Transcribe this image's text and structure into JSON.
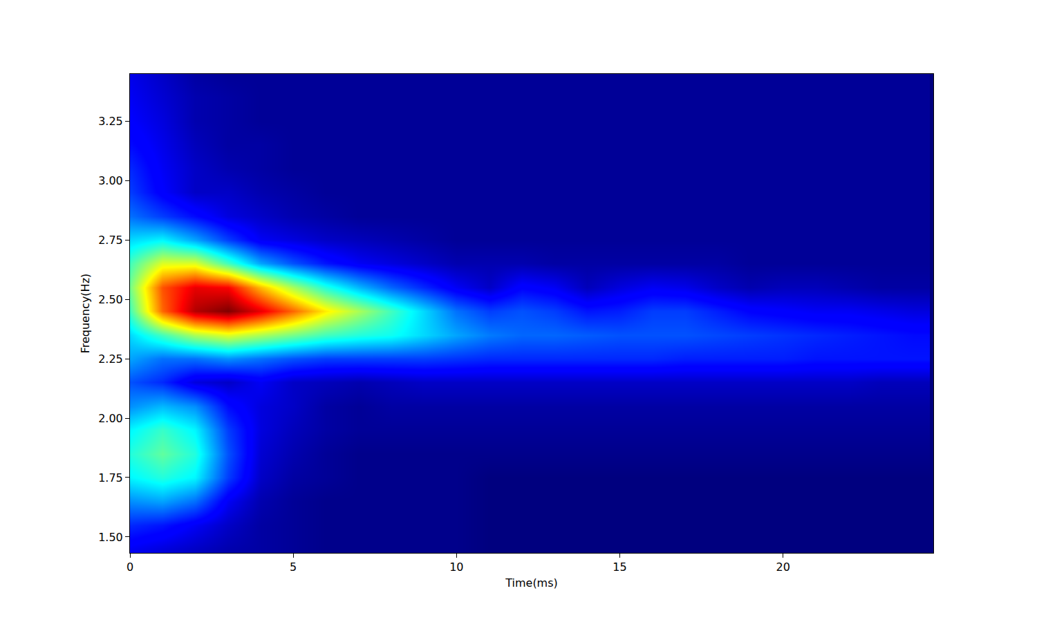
{
  "chart_data": {
    "type": "heatmap",
    "xlabel": "Time(ms)",
    "ylabel": "Frequency(Hz)",
    "xlim": [
      0,
      24.6
    ],
    "ylim": [
      1.433,
      3.448
    ],
    "xticks": [
      0,
      5,
      10,
      15,
      20
    ],
    "yticks": [
      {
        "value": 1.5,
        "label": "1.50"
      },
      1.75,
      {
        "value": 2,
        "label": "2.00"
      },
      2.25,
      {
        "value": 2.5,
        "label": "2.50"
      },
      2.75,
      {
        "value": 3,
        "label": "3.00"
      },
      3.25
    ],
    "x": [
      0,
      1,
      2,
      3,
      4,
      5,
      6,
      7,
      8,
      9,
      10,
      11,
      12,
      13,
      14,
      15,
      16,
      17,
      18,
      19,
      20,
      21,
      22,
      23,
      24
    ],
    "y": [
      1.45,
      1.55,
      1.65,
      1.75,
      1.85,
      1.95,
      2.05,
      2.15,
      2.25,
      2.35,
      2.45,
      2.55,
      2.65,
      2.75,
      2.85,
      2.95,
      3.05,
      3.15,
      3.25,
      3.35,
      3.45
    ],
    "z": [
      [
        0.12,
        0.1,
        0.08,
        0.06,
        0.05,
        0.04,
        0.03,
        0.03,
        0.03,
        0.03,
        0.03,
        0.02,
        0.02,
        0.02,
        0.02,
        0.02,
        0.02,
        0.02,
        0.02,
        0.02,
        0.02,
        0.02,
        0.02,
        0.02,
        0.02
      ],
      [
        0.18,
        0.16,
        0.12,
        0.08,
        0.05,
        0.04,
        0.03,
        0.03,
        0.03,
        0.03,
        0.03,
        0.02,
        0.02,
        0.02,
        0.02,
        0.02,
        0.02,
        0.02,
        0.02,
        0.02,
        0.02,
        0.02,
        0.02,
        0.02,
        0.02
      ],
      [
        0.28,
        0.3,
        0.25,
        0.12,
        0.06,
        0.04,
        0.03,
        0.03,
        0.03,
        0.03,
        0.03,
        0.02,
        0.02,
        0.02,
        0.02,
        0.02,
        0.02,
        0.02,
        0.02,
        0.02,
        0.02,
        0.02,
        0.02,
        0.02,
        0.02
      ],
      [
        0.38,
        0.42,
        0.38,
        0.2,
        0.08,
        0.05,
        0.04,
        0.03,
        0.03,
        0.03,
        0.03,
        0.02,
        0.02,
        0.02,
        0.02,
        0.02,
        0.02,
        0.02,
        0.02,
        0.02,
        0.02,
        0.02,
        0.02,
        0.02,
        0.02
      ],
      [
        0.42,
        0.48,
        0.42,
        0.22,
        0.09,
        0.06,
        0.04,
        0.03,
        0.03,
        0.03,
        0.03,
        0.03,
        0.03,
        0.03,
        0.03,
        0.03,
        0.03,
        0.03,
        0.03,
        0.03,
        0.03,
        0.03,
        0.03,
        0.03,
        0.03
      ],
      [
        0.38,
        0.44,
        0.38,
        0.2,
        0.1,
        0.07,
        0.05,
        0.04,
        0.04,
        0.04,
        0.04,
        0.04,
        0.04,
        0.04,
        0.04,
        0.04,
        0.04,
        0.04,
        0.04,
        0.04,
        0.04,
        0.04,
        0.04,
        0.04,
        0.04
      ],
      [
        0.28,
        0.32,
        0.28,
        0.15,
        0.1,
        0.08,
        0.05,
        0.04,
        0.05,
        0.05,
        0.05,
        0.05,
        0.05,
        0.05,
        0.05,
        0.05,
        0.05,
        0.05,
        0.05,
        0.05,
        0.05,
        0.05,
        0.05,
        0.05,
        0.05
      ],
      [
        0.22,
        0.18,
        0.1,
        0.08,
        0.12,
        0.08,
        0.07,
        0.06,
        0.07,
        0.08,
        0.08,
        0.08,
        0.08,
        0.08,
        0.08,
        0.08,
        0.08,
        0.08,
        0.08,
        0.08,
        0.08,
        0.08,
        0.08,
        0.07,
        0.07
      ],
      [
        0.3,
        0.25,
        0.25,
        0.28,
        0.25,
        0.22,
        0.2,
        0.2,
        0.2,
        0.2,
        0.19,
        0.18,
        0.18,
        0.18,
        0.18,
        0.18,
        0.18,
        0.17,
        0.17,
        0.17,
        0.17,
        0.16,
        0.16,
        0.16,
        0.16
      ],
      [
        0.35,
        0.45,
        0.55,
        0.6,
        0.55,
        0.5,
        0.45,
        0.42,
        0.4,
        0.35,
        0.3,
        0.26,
        0.24,
        0.24,
        0.23,
        0.22,
        0.22,
        0.22,
        0.21,
        0.2,
        0.19,
        0.18,
        0.17,
        0.16,
        0.15
      ],
      [
        0.45,
        0.78,
        0.95,
        1.0,
        0.9,
        0.78,
        0.65,
        0.55,
        0.45,
        0.35,
        0.25,
        0.2,
        0.22,
        0.2,
        0.16,
        0.17,
        0.2,
        0.2,
        0.17,
        0.14,
        0.13,
        0.12,
        0.12,
        0.11,
        0.1
      ],
      [
        0.5,
        0.8,
        0.9,
        0.88,
        0.7,
        0.55,
        0.42,
        0.32,
        0.24,
        0.18,
        0.12,
        0.08,
        0.14,
        0.12,
        0.07,
        0.1,
        0.12,
        0.11,
        0.08,
        0.06,
        0.07,
        0.07,
        0.06,
        0.05,
        0.05
      ],
      [
        0.45,
        0.6,
        0.6,
        0.45,
        0.3,
        0.22,
        0.16,
        0.12,
        0.1,
        0.08,
        0.06,
        0.06,
        0.06,
        0.05,
        0.05,
        0.05,
        0.05,
        0.05,
        0.05,
        0.04,
        0.04,
        0.04,
        0.04,
        0.04,
        0.04
      ],
      [
        0.35,
        0.38,
        0.3,
        0.2,
        0.12,
        0.1,
        0.08,
        0.07,
        0.06,
        0.05,
        0.04,
        0.04,
        0.04,
        0.04,
        0.04,
        0.04,
        0.04,
        0.04,
        0.04,
        0.04,
        0.04,
        0.04,
        0.04,
        0.04,
        0.04
      ],
      [
        0.25,
        0.2,
        0.15,
        0.1,
        0.08,
        0.06,
        0.05,
        0.04,
        0.04,
        0.04,
        0.04,
        0.04,
        0.04,
        0.04,
        0.04,
        0.04,
        0.04,
        0.04,
        0.04,
        0.04,
        0.04,
        0.04,
        0.04,
        0.04,
        0.04
      ],
      [
        0.2,
        0.13,
        0.08,
        0.08,
        0.06,
        0.05,
        0.04,
        0.04,
        0.04,
        0.04,
        0.04,
        0.04,
        0.04,
        0.04,
        0.04,
        0.04,
        0.04,
        0.04,
        0.04,
        0.04,
        0.04,
        0.04,
        0.04,
        0.04,
        0.04
      ],
      [
        0.18,
        0.12,
        0.08,
        0.06,
        0.05,
        0.04,
        0.04,
        0.04,
        0.04,
        0.04,
        0.04,
        0.04,
        0.04,
        0.04,
        0.04,
        0.04,
        0.04,
        0.04,
        0.04,
        0.04,
        0.04,
        0.04,
        0.04,
        0.04,
        0.04
      ],
      [
        0.15,
        0.11,
        0.07,
        0.05,
        0.05,
        0.04,
        0.04,
        0.04,
        0.04,
        0.04,
        0.04,
        0.04,
        0.04,
        0.04,
        0.04,
        0.04,
        0.04,
        0.04,
        0.04,
        0.04,
        0.04,
        0.04,
        0.04,
        0.04,
        0.04
      ],
      [
        0.13,
        0.1,
        0.06,
        0.05,
        0.04,
        0.04,
        0.04,
        0.04,
        0.04,
        0.04,
        0.04,
        0.04,
        0.04,
        0.04,
        0.04,
        0.04,
        0.04,
        0.04,
        0.04,
        0.04,
        0.04,
        0.04,
        0.04,
        0.04,
        0.04
      ],
      [
        0.12,
        0.09,
        0.06,
        0.05,
        0.04,
        0.04,
        0.04,
        0.04,
        0.04,
        0.04,
        0.04,
        0.04,
        0.04,
        0.04,
        0.04,
        0.04,
        0.04,
        0.04,
        0.04,
        0.04,
        0.04,
        0.04,
        0.04,
        0.04,
        0.04
      ],
      [
        0.11,
        0.08,
        0.05,
        0.04,
        0.04,
        0.04,
        0.04,
        0.04,
        0.04,
        0.04,
        0.04,
        0.04,
        0.04,
        0.04,
        0.04,
        0.04,
        0.04,
        0.04,
        0.04,
        0.04,
        0.04,
        0.04,
        0.04,
        0.04,
        0.04
      ]
    ]
  }
}
